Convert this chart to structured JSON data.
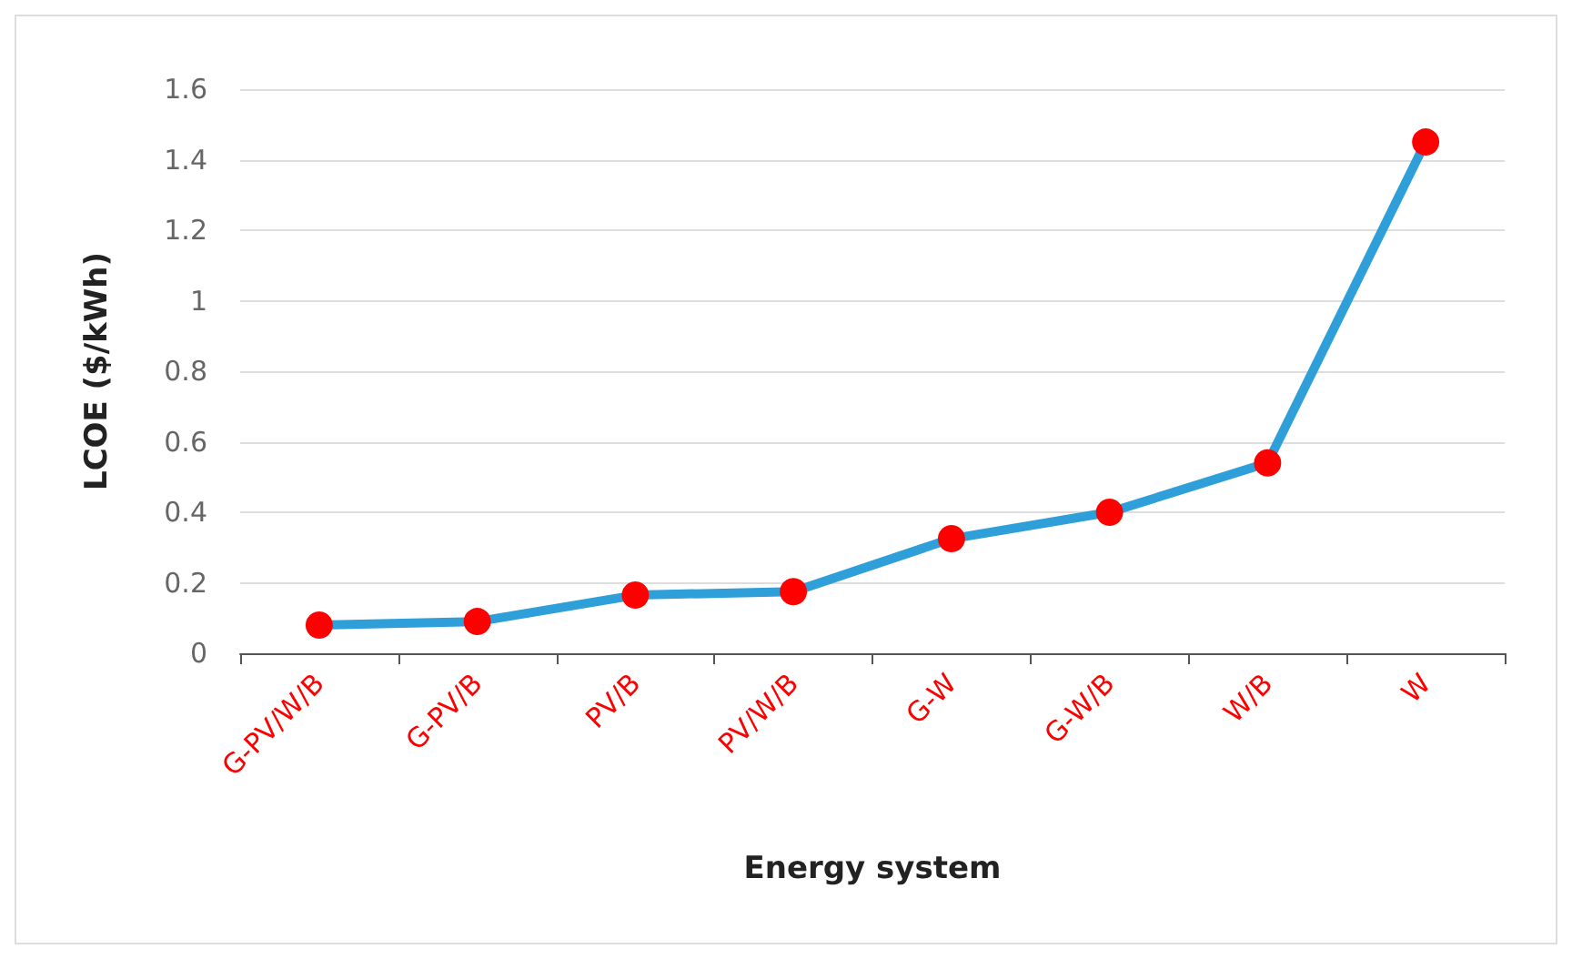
{
  "chart_data": {
    "type": "line",
    "xlabel": "Energy system",
    "ylabel": "LCOE ($/kWh)",
    "categories": [
      "G-PV/W/B",
      "G-PV/B",
      "PV/B",
      "PV/W/B",
      "G-W",
      "G-W/B",
      "W/B",
      "W"
    ],
    "series": [
      {
        "color": "#2e9fd8",
        "colors": [
          "#ff0000",
          "#ff0000",
          "#ff0000",
          "#ff0000",
          "#ff0000",
          "#ff0000",
          "#ff0000",
          "#ff0000"
        ],
        "values": [
          0.08,
          0.09,
          0.165,
          0.175,
          0.325,
          0.4,
          0.54,
          1.45
        ]
      }
    ],
    "ylim": [
      0,
      1.6
    ],
    "yticks": [
      0,
      0.2,
      0.4,
      0.6,
      0.8,
      1,
      1.2,
      1.4,
      1.6
    ],
    "grid": "y",
    "marker": "circle",
    "line_style": "solid"
  }
}
